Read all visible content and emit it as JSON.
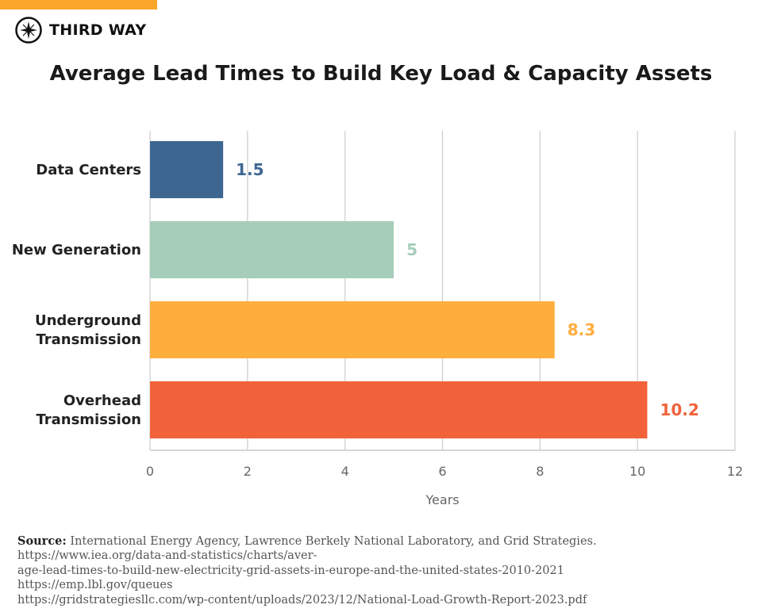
{
  "brand": {
    "name": "THIRD WAY",
    "accent": "#f9a62b"
  },
  "chart_data": {
    "type": "bar",
    "orientation": "horizontal",
    "title": "Average Lead Times to Build Key Load & Capacity Assets",
    "categories": [
      "Data Centers",
      "New Generation",
      "Underground Transmission",
      "Overhead Transmission"
    ],
    "values": [
      1.5,
      5,
      8.3,
      10.2
    ],
    "value_labels": [
      "1.5",
      "5",
      "8.3",
      "10.2"
    ],
    "colors": [
      "#3d6791",
      "#a6cdb9",
      "#ffae3e",
      "#f2623a"
    ],
    "xlabel": "Years",
    "xlim": [
      0,
      12
    ],
    "xticks": [
      "0",
      "2",
      "4",
      "6",
      "8",
      "10",
      "12"
    ],
    "grid": true
  },
  "source": {
    "label": "Source:",
    "text": "International Energy Agency, Lawrence Berkely National Laboratory, and Grid Strategies.",
    "links": [
      "https://www.iea.org/data-and-statistics/charts/aver-",
      "age-lead-times-to-build-new-electricity-grid-assets-in-europe-and-the-united-states-2010-2021",
      "https://emp.lbl.gov/queues",
      "https://gridstrategiesllc.com/wp-content/uploads/2023/12/National-Load-Growth-Report-2023.pdf"
    ]
  }
}
